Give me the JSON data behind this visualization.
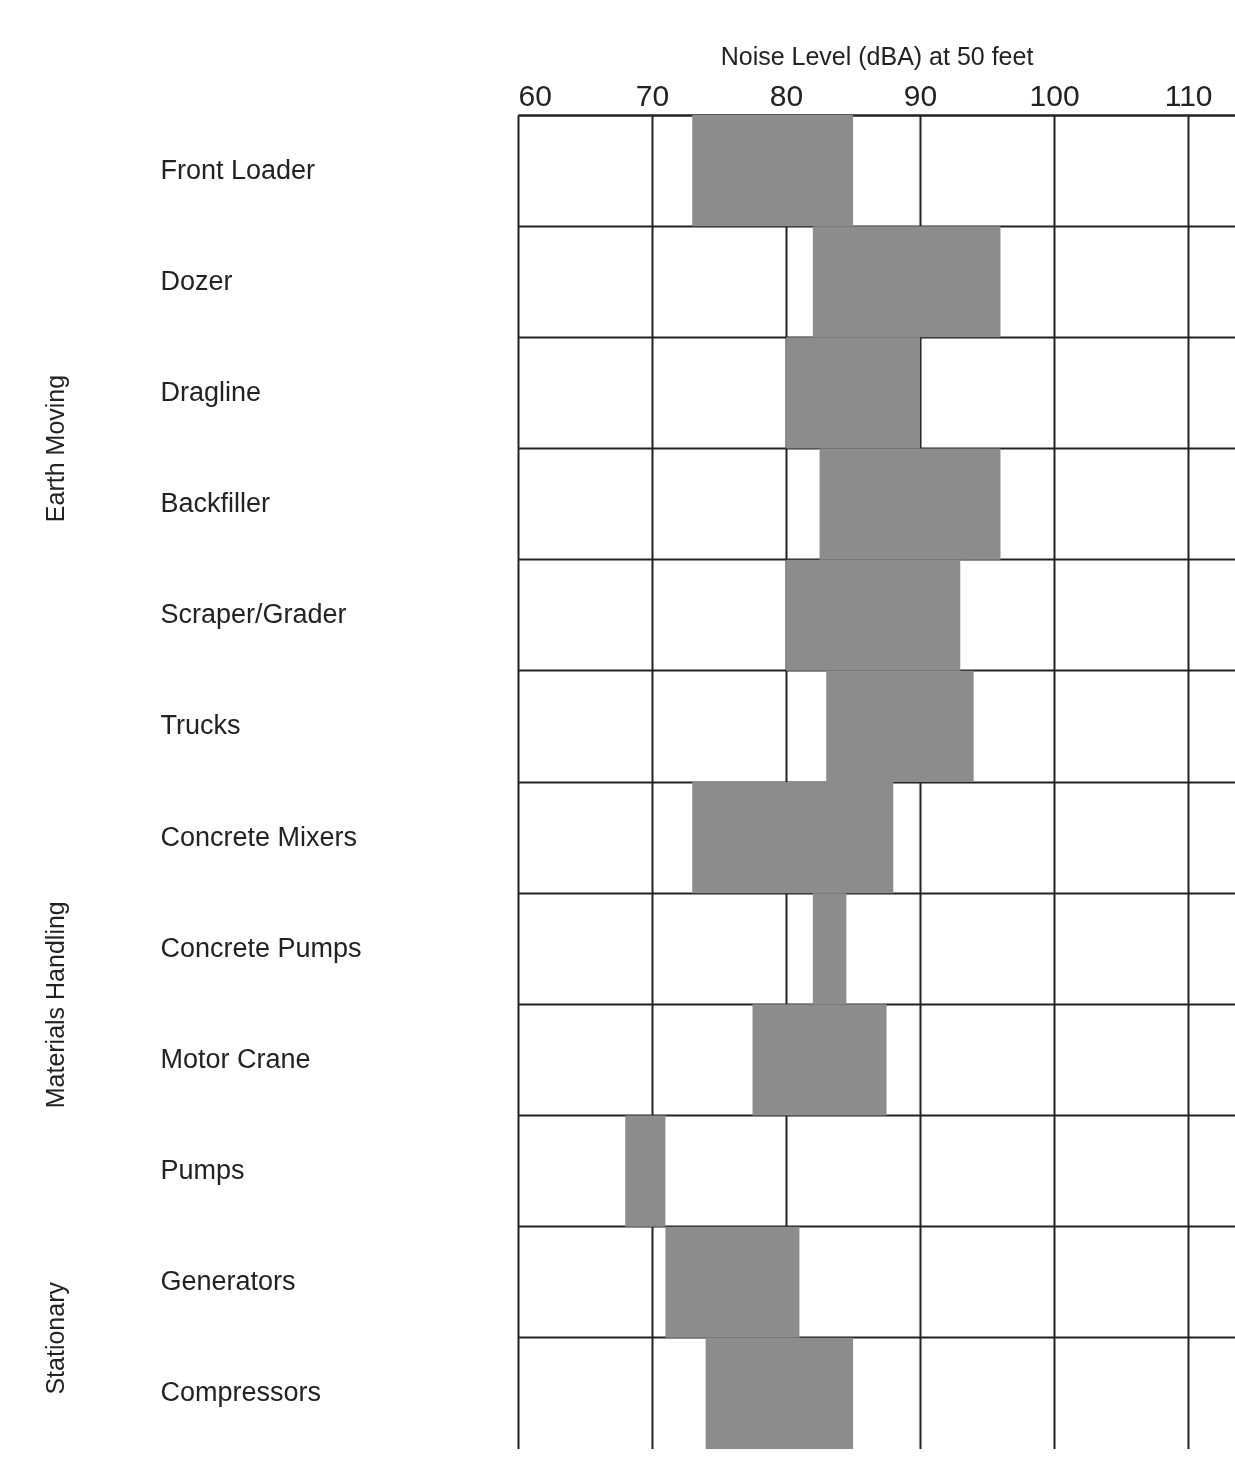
{
  "chart_data": {
    "type": "bar",
    "orientation": "horizontal",
    "xlabel": "Noise Level (dBA) at 50 feet",
    "categories": [
      "Front Loader",
      "Dozer",
      "Dragline",
      "Backfiller",
      "Scraper/Grader",
      "Trucks",
      "Concrete Mixers",
      "Concrete Pumps",
      "Motor Crane",
      "Pumps",
      "Generators",
      "Compressors"
    ],
    "base": [
      73,
      82,
      80,
      82.5,
      80,
      83,
      73,
      82,
      77.5,
      68,
      71,
      74
    ],
    "values": [
      12,
      14,
      10,
      13.5,
      13,
      11,
      15,
      2.5,
      10,
      3,
      10,
      11
    ],
    "color": "#8c8c8c",
    "xlim": [
      60,
      113.5
    ],
    "xticks": [
      60,
      70,
      80,
      90,
      100,
      110
    ],
    "grid": true,
    "annotations": [
      "Earth Moving",
      "Materials Handling",
      "Stationary"
    ]
  }
}
